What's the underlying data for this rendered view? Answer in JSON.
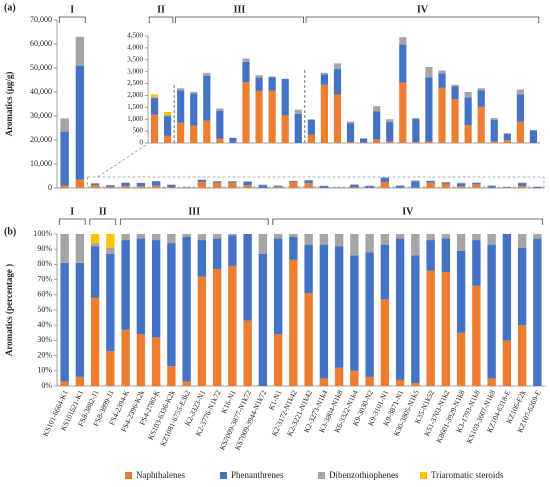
{
  "chart_data": [
    {
      "type": "bar",
      "stacked": true,
      "label": "(a)",
      "y_label": "Aromatics (μg/g)",
      "ylim": [
        0,
        70000
      ],
      "yticks": [
        0,
        {
          "value": 10000,
          "label": "10,000"
        },
        {
          "value": 20000,
          "label": "20,000"
        },
        {
          "value": 30000,
          "label": "30,000"
        },
        {
          "value": 40000,
          "label": "40,000"
        },
        {
          "value": 50000,
          "label": "50,000"
        },
        {
          "value": 60000,
          "label": "60,000"
        },
        {
          "value": 70000,
          "label": "70,000"
        }
      ],
      "inset": {
        "ylim": [
          0,
          4500
        ],
        "yticks": [
          0,
          500,
          {
            "value": 1000,
            "label": "1,000"
          },
          {
            "value": 1500,
            "label": "1,500"
          },
          {
            "value": 2000,
            "label": "2,000"
          },
          {
            "value": 2500,
            "label": "2,500"
          },
          {
            "value": 3000,
            "label": "3,000"
          },
          {
            "value": 3500,
            "label": "3,500"
          },
          {
            "value": 4000,
            "label": "4,000"
          },
          {
            "value": 4500,
            "label": "4,500"
          }
        ]
      },
      "groups": [
        {
          "label": "I",
          "count": 2
        },
        {
          "label": "II",
          "count": 2
        },
        {
          "label": "III",
          "count": 10
        },
        {
          "label": "IV",
          "count": 18
        }
      ],
      "series": [
        {
          "color": "#ed7d31",
          "values": [
            900,
            3500,
            1190,
            300,
            850,
            730,
            940,
            190,
            7,
            2560,
            2190,
            2210,
            1160,
            0,
            340,
            2450,
            2040,
            45,
            24,
            155,
            60,
            2540,
            42,
            64,
            2320,
            1840,
            750,
            1520,
            52,
            120,
            900,
            0
          ]
        },
        {
          "color": "#4472c4",
          "values": [
            22600,
            47500,
            700,
            830,
            1360,
            1350,
            1890,
            1170,
            209,
            850,
            570,
            560,
            1540,
            1220,
            630,
            440,
            1070,
            790,
            160,
            1180,
            820,
            1600,
            977,
            2690,
            610,
            540,
            1160,
            690,
            925,
            280,
            1150,
            535
          ]
        },
        {
          "color": "#a5a5a5",
          "values": [
            5500,
            12000,
            40,
            50,
            90,
            70,
            120,
            90,
            4,
            140,
            90,
            30,
            0,
            180,
            30,
            60,
            240,
            65,
            16,
            215,
            120,
            310,
            31,
            446,
            120,
            70,
            240,
            90,
            73,
            0,
            200,
            15
          ]
        },
        {
          "color": "#ffc000",
          "values": [
            0,
            0,
            120,
            120,
            0,
            0,
            0,
            0,
            0,
            0,
            0,
            0,
            0,
            0,
            0,
            0,
            0,
            0,
            0,
            0,
            0,
            0,
            0,
            0,
            0,
            0,
            0,
            0,
            0,
            0,
            0,
            0
          ]
        }
      ]
    },
    {
      "type": "bar",
      "stacked": true,
      "label": "(b)",
      "y_label": "Aromatics (percentage )",
      "ylim": [
        0,
        100
      ],
      "yticks": [
        {
          "value": 0,
          "label": "0%"
        },
        {
          "value": 10,
          "label": "10%"
        },
        {
          "value": 20,
          "label": "20%"
        },
        {
          "value": 30,
          "label": "30%"
        },
        {
          "value": 40,
          "label": "40%"
        },
        {
          "value": 50,
          "label": "50%"
        },
        {
          "value": 60,
          "label": "60%"
        },
        {
          "value": 70,
          "label": "70%"
        },
        {
          "value": 80,
          "label": "80%"
        },
        {
          "value": 90,
          "label": "90%"
        },
        {
          "value": 100,
          "label": "100%"
        }
      ],
      "groups": [
        {
          "label": "I",
          "count": 2
        },
        {
          "label": "II",
          "count": 2
        },
        {
          "label": "III",
          "count": 10
        },
        {
          "label": "IV",
          "count": 18
        }
      ],
      "categories": [
        "KS101-6664-K1",
        "KS101621-K1",
        "FS8-3882-J1",
        "FS8-3899-J1",
        "FS4-2394-K",
        "FS4-2396-K2k",
        "FS4-2780-K",
        "KS103-6336-K2k",
        "KZ1081-6755-E3k2",
        "K2-3323-N1",
        "K2-3776-N1k72",
        "K16-N1",
        "KS7009-3877-N1k72",
        "KS7009-3944-N1k72",
        "K1-N1",
        "K2-3172-N1k42",
        "K2-3221-N1k42",
        "K2-3273-N1k4",
        "K3-3804-N1k8",
        "K6-3322-N1k4",
        "K9-3030-N2",
        "K9-3101-N1",
        "K9-3871-N1",
        "K30-3805-N1k5",
        "K35-N1k52",
        "K51-3703-N1k2",
        "K8601-3929-N1k8",
        "K3-1793-N1k8",
        "KS103-3607-N1k8",
        "KZ104-6318-E",
        "KZ106-E2k",
        "KZ107-6269-E"
      ],
      "series": [
        {
          "name": "Naphthalenes",
          "color": "#ed7d31",
          "values": [
            3,
            6,
            58,
            23,
            37,
            34,
            32,
            13,
            3,
            72,
            77,
            79,
            43,
            0,
            34,
            83,
            61,
            5,
            12,
            10,
            6,
            57,
            4,
            2,
            76,
            75,
            35,
            66,
            5,
            30,
            40,
            0
          ]
        },
        {
          "name": "Phenanthrenes",
          "color": "#4472c4",
          "values": [
            78,
            75,
            34,
            64,
            59,
            63,
            64,
            81,
            95,
            24,
            20,
            20,
            57,
            87,
            63,
            15,
            32,
            88,
            80,
            76,
            82,
            36,
            93,
            84,
            20,
            22,
            54,
            30,
            88,
            70,
            51,
            97
          ]
        },
        {
          "name": "Dibenzothiophenes",
          "color": "#a5a5a5",
          "values": [
            19,
            19,
            2,
            4,
            4,
            3,
            4,
            6,
            2,
            4,
            3,
            1,
            0,
            13,
            3,
            2,
            7,
            7,
            8,
            14,
            12,
            7,
            3,
            14,
            4,
            3,
            11,
            4,
            7,
            0,
            9,
            3
          ]
        },
        {
          "name": "Triaromatic steroids",
          "color": "#ffc000",
          "values": [
            0,
            0,
            6,
            9,
            0,
            0,
            0,
            0,
            0,
            0,
            0,
            0,
            0,
            0,
            0,
            0,
            0,
            0,
            0,
            0,
            0,
            0,
            0,
            0,
            0,
            0,
            0,
            0,
            0,
            0,
            0,
            0
          ]
        }
      ]
    }
  ]
}
